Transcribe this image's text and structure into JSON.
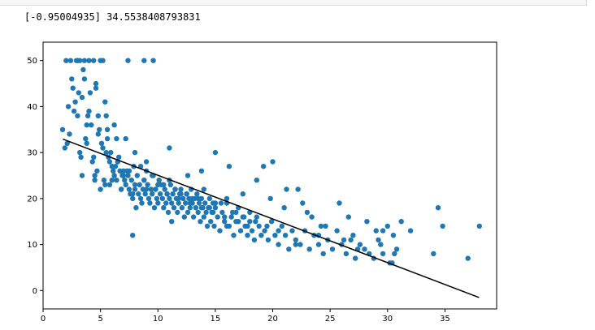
{
  "output": {
    "print_text": "[-0.95004935] 34.5538408793831"
  },
  "colors": {
    "points": "#1f77b4",
    "fit_line": "#000000",
    "axes": "#000000",
    "background": "#ffffff"
  },
  "chart_data": {
    "type": "scatter",
    "title": "",
    "xlabel": "",
    "ylabel": "",
    "xlim": [
      0,
      39.5
    ],
    "ylim": [
      -4,
      54
    ],
    "x_ticks": [
      0,
      5,
      10,
      15,
      20,
      25,
      30,
      35
    ],
    "y_ticks": [
      0,
      10,
      20,
      30,
      40,
      50
    ],
    "x_tick_labels": [
      "0",
      "5",
      "10",
      "15",
      "20",
      "25",
      "30",
      "35"
    ],
    "y_tick_labels": [
      "0",
      "10",
      "20",
      "30",
      "40",
      "50"
    ],
    "grid": false,
    "legend": "none",
    "fit_line": {
      "slope": -0.95004935,
      "intercept": 34.5538408793831,
      "x": [
        1.73,
        37.97
      ],
      "y": [
        32.91,
        -1.52
      ]
    },
    "series": [
      {
        "x": [
          1.7,
          1.9,
          2.1,
          2.2,
          2.3,
          2.5,
          2.6,
          2.7,
          2.8,
          2.9,
          3.0,
          3.1,
          3.2,
          3.3,
          3.4,
          3.5,
          3.6,
          3.7,
          3.8,
          3.9,
          4.0,
          4.1,
          4.2,
          4.3,
          4.4,
          4.5,
          4.6,
          4.7,
          4.8,
          4.9,
          5.0,
          5.1,
          5.2,
          5.3,
          5.4,
          5.5,
          5.6,
          5.7,
          5.8,
          5.9,
          6.0,
          6.1,
          6.2,
          6.3,
          6.4,
          6.5,
          6.6,
          6.7,
          6.8,
          6.9,
          7.0,
          7.1,
          7.2,
          7.3,
          7.4,
          7.5,
          7.6,
          7.7,
          7.8,
          7.9,
          8.0,
          8.1,
          8.2,
          8.3,
          8.4,
          8.5,
          8.6,
          8.7,
          8.8,
          8.9,
          9.0,
          9.1,
          9.2,
          9.3,
          9.4,
          9.5,
          9.6,
          9.7,
          9.8,
          9.9,
          10.0,
          10.1,
          10.2,
          10.3,
          10.4,
          10.5,
          10.6,
          10.7,
          10.8,
          10.9,
          11.0,
          11.1,
          11.2,
          11.3,
          11.4,
          11.5,
          11.6,
          11.7,
          11.8,
          11.9,
          12.0,
          12.1,
          12.2,
          12.3,
          12.4,
          12.5,
          12.6,
          12.7,
          12.8,
          12.9,
          13.0,
          13.1,
          13.2,
          13.3,
          13.4,
          13.5,
          13.6,
          13.7,
          13.8,
          13.9,
          14.0,
          14.1,
          14.2,
          14.3,
          14.4,
          14.5,
          14.6,
          14.7,
          14.8,
          14.9,
          15.0,
          15.2,
          15.4,
          15.6,
          15.8,
          16.0,
          16.2,
          16.4,
          16.6,
          16.8,
          17.0,
          17.2,
          17.4,
          17.6,
          17.8,
          18.0,
          18.2,
          18.4,
          18.6,
          18.8,
          19.0,
          19.3,
          19.6,
          19.9,
          20.2,
          20.5,
          20.8,
          21.1,
          21.4,
          21.7,
          22.0,
          22.4,
          22.8,
          23.2,
          23.6,
          24.0,
          24.4,
          24.8,
          25.2,
          25.6,
          26.0,
          26.4,
          26.8,
          27.2,
          27.6,
          28.0,
          28.4,
          28.8,
          29.2,
          29.6,
          30.0,
          30.4,
          30.8,
          31.2,
          32.0,
          34.0,
          34.4,
          34.8,
          37.0,
          38.0,
          2.0,
          2.4,
          3.2,
          3.6,
          4.4,
          5.2,
          7.4,
          8.8,
          9.6,
          3.4,
          4.0,
          4.6,
          5.4,
          6.2,
          3.0,
          3.8,
          4.8,
          5.6,
          6.4,
          7.2,
          8.0,
          9.0,
          11.0,
          12.6,
          13.8,
          15.0,
          16.2,
          17.4,
          18.6,
          19.8,
          21.0,
          22.2,
          23.4,
          24.6,
          25.8,
          27.0,
          28.2,
          29.4,
          30.6,
          19.2,
          20.0,
          21.2,
          22.6,
          23.0,
          24.2,
          26.2,
          27.4,
          29.0,
          30.2,
          5.0,
          6.0,
          7.0,
          8.0,
          9.0,
          10.0,
          11.0,
          12.0,
          13.0,
          14.0,
          15.0,
          16.0,
          17.0,
          18.0,
          5.5,
          6.5,
          7.5,
          8.5,
          9.5,
          10.5,
          11.5,
          12.5,
          13.5,
          14.5,
          15.5,
          16.5,
          17.5,
          18.5,
          19.5,
          20.5,
          4.5,
          5.8,
          6.8,
          7.8,
          8.8,
          9.8,
          10.8,
          11.8,
          12.8,
          13.8,
          14.8,
          15.8,
          16.8,
          17.8,
          7.8,
          11.2,
          16.0,
          22.0,
          24.0,
          26.6,
          29.6,
          30.5
        ],
        "y": [
          35,
          31,
          32,
          40,
          34,
          46,
          44,
          39,
          41,
          50,
          50,
          43,
          30,
          29,
          25,
          48,
          46,
          33,
          32,
          38,
          50,
          43,
          36,
          28,
          29,
          25,
          45,
          26,
          34,
          35,
          50,
          32,
          31,
          24,
          23,
          38,
          33,
          29,
          28,
          30,
          27,
          26,
          25,
          27,
          24,
          28,
          29,
          26,
          22,
          25,
          26,
          24,
          23,
          26,
          25,
          22,
          21,
          24,
          20,
          27,
          22,
          18,
          25,
          21,
          23,
          20,
          19,
          22,
          24,
          21,
          26,
          23,
          20,
          19,
          22,
          21,
          25,
          18,
          22,
          20,
          19,
          24,
          21,
          23,
          20,
          18,
          22,
          19,
          21,
          17,
          20,
          23,
          19,
          21,
          18,
          22,
          20,
          17,
          19,
          21,
          22,
          18,
          20,
          16,
          19,
          21,
          17,
          20,
          18,
          22,
          19,
          16,
          20,
          18,
          21,
          17,
          19,
          15,
          20,
          18,
          16,
          19,
          17,
          14,
          18,
          20,
          15,
          17,
          19,
          14,
          18,
          16,
          13,
          17,
          15,
          19,
          14,
          16,
          12,
          17,
          15,
          13,
          16,
          14,
          12,
          15,
          13,
          11,
          16,
          14,
          12,
          13,
          11,
          15,
          12,
          10,
          14,
          12,
          9,
          13,
          11,
          10,
          13,
          9,
          12,
          10,
          8,
          11,
          9,
          13,
          10,
          8,
          11,
          7,
          10,
          9,
          8,
          7,
          11,
          8,
          14,
          6,
          9,
          15,
          13,
          8,
          18,
          14,
          7,
          14,
          50,
          50,
          50,
          50,
          50,
          50,
          50,
          50,
          50,
          42,
          39,
          44,
          41,
          36,
          38,
          36,
          38,
          35,
          33,
          33,
          30,
          28,
          31,
          25,
          26,
          30,
          27,
          21,
          24,
          20,
          18,
          22,
          16,
          14,
          19,
          12,
          15,
          10,
          8,
          27,
          28,
          22,
          19,
          17,
          14,
          11,
          9,
          13,
          6,
          22,
          24,
          25,
          23,
          22,
          23,
          24,
          21,
          20,
          22,
          19,
          20,
          18,
          17,
          30,
          28,
          26,
          27,
          25,
          23,
          22,
          21,
          20,
          18,
          19,
          17,
          16,
          15,
          14,
          13,
          24,
          23,
          22,
          21,
          24,
          22,
          21,
          20,
          19,
          18,
          17,
          16,
          15,
          14,
          12,
          15,
          14,
          10,
          12,
          16,
          13,
          12
        ]
      }
    ]
  }
}
